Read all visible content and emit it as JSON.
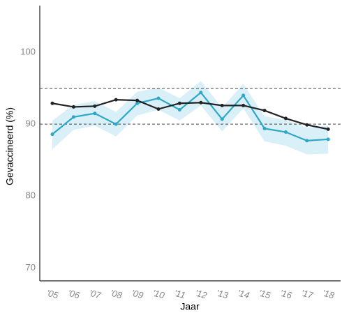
{
  "chart_data": {
    "type": "line",
    "x_label": "Jaar",
    "y_label": "Gevaccineerd (%)",
    "categories": [
      "'05",
      "'06",
      "'07",
      "'08",
      "'09",
      "'10",
      "'11",
      "'12",
      "'13",
      "'14",
      "'15",
      "'16",
      "'17",
      "'18"
    ],
    "series": [
      {
        "color": "#2ea6c6",
        "band_color": "#d9f0f9",
        "values": [
          88.6,
          91.0,
          91.5,
          90.0,
          92.9,
          93.6,
          92.0,
          94.4,
          90.7,
          94.0,
          89.4,
          88.9,
          87.7,
          87.9
        ],
        "lower": [
          86.5,
          89.2,
          89.8,
          88.3,
          91.2,
          92.0,
          90.5,
          92.6,
          89.0,
          92.2,
          87.6,
          87.0,
          85.8,
          85.9
        ],
        "upper": [
          90.5,
          92.7,
          93.2,
          91.7,
          94.5,
          95.1,
          93.6,
          96.0,
          92.3,
          95.6,
          91.1,
          90.6,
          89.5,
          89.8
        ]
      },
      {
        "color": "#222222",
        "values": [
          92.9,
          92.4,
          92.5,
          93.4,
          93.3,
          92.1,
          92.9,
          93.0,
          92.6,
          92.6,
          91.9,
          90.8,
          89.9,
          89.3
        ]
      }
    ],
    "reference_lines": [
      95,
      90
    ],
    "ylim": [
      68.2,
      106.5
    ],
    "yticks": [
      70,
      80,
      90,
      100
    ],
    "grid": false
  }
}
